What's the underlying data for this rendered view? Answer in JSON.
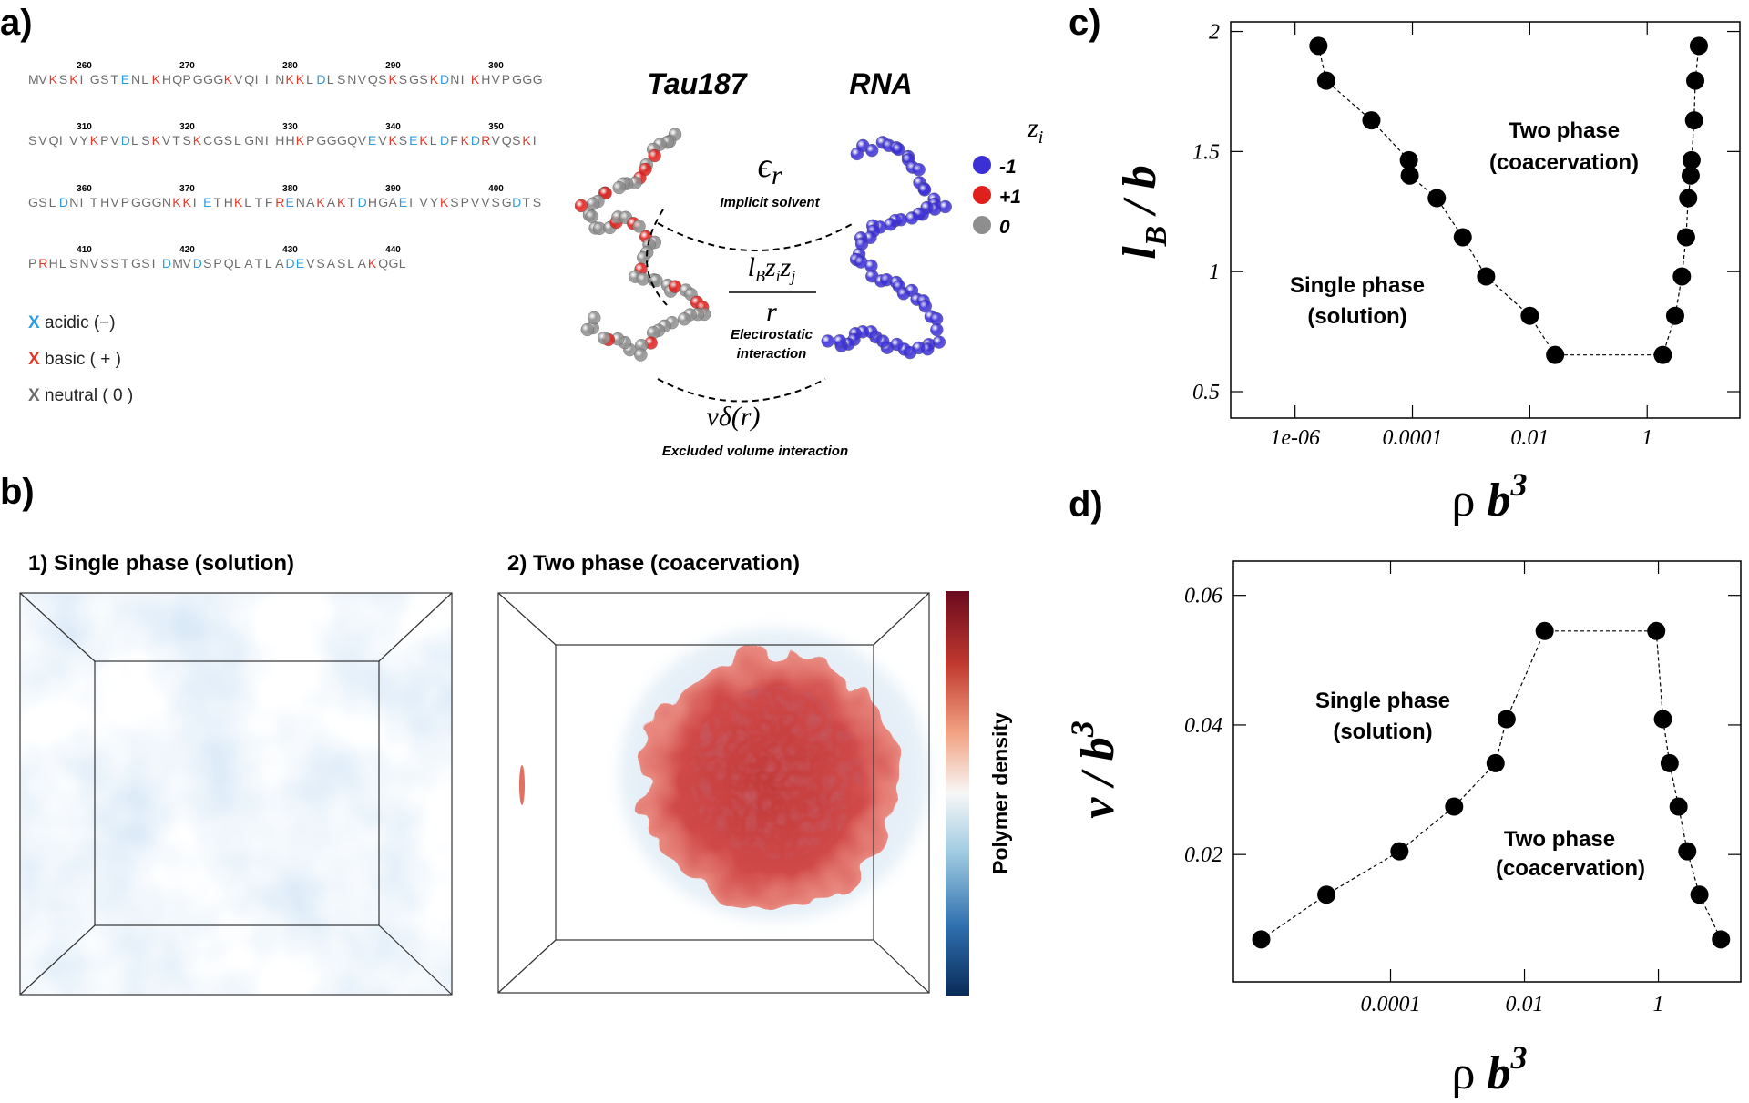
{
  "panel_labels": [
    "a)",
    "b)",
    "c)",
    "d)"
  ],
  "sequence": {
    "lines": [
      "MVKSKIGSTENLKHQPGGGKVQIINKKLDLSNVQSKSGSKDNIKHVPGGG",
      "SVQIVYKPVDLSKVTSKCGSLGNIHHKPGGGQVEVKSEKLDFKDRVQSKI",
      "GSLDNITHVPGGGNKKIETHKLTFRENAKAKTDHGAEIVYKSPVVSGDTS",
      "PRHLSNVSSTGSIDMVDSPQLATLADEVSASLAKQGL"
    ],
    "numbers": [
      [
        260,
        270,
        280,
        290,
        300
      ],
      [
        310,
        320,
        330,
        340,
        350
      ],
      [
        360,
        370,
        380,
        390,
        400
      ],
      [
        410,
        420,
        430,
        440
      ]
    ],
    "legend": [
      {
        "symbol": "X",
        "label": "acidic (−)",
        "color": "#2f9be0"
      },
      {
        "symbol": "X",
        "label": "basic ( + )",
        "color": "#e03a2a"
      },
      {
        "symbol": "X",
        "label": "neutral ( 0 )",
        "color": "#6b6b6b"
      }
    ]
  },
  "schematic": {
    "molecules": [
      "Tau187",
      "RNA"
    ],
    "solvent_symbol": [
      "ϵ",
      "r"
    ],
    "solvent_label": "Implicit solvent",
    "electrostatic_numerator": [
      "l",
      "B",
      "z",
      "i",
      "z",
      "j"
    ],
    "electrostatic_denominator": "r",
    "electrostatic_label": [
      "Electrostatic",
      "interaction"
    ],
    "excluded_symbol": "vδ(r)",
    "excluded_label": "Excluded volume interaction",
    "charge_symbol": [
      "z",
      "i"
    ],
    "charges": [
      {
        "label": "-1",
        "color": "#3b2fd6"
      },
      {
        "label": "+1",
        "color": "#e0201c"
      },
      {
        "label": "0",
        "color": "#8e8e8e"
      }
    ]
  },
  "density": {
    "panels": [
      "1) Single phase (solution)",
      "2) Two phase (coacervation)"
    ],
    "colorbar_label": "Polymer density"
  },
  "chart_data": [
    {
      "type": "line",
      "markers": true,
      "line_style": "dashed",
      "color": "#000000",
      "xscale": "log",
      "ylabel": [
        "l",
        "B",
        " / b"
      ],
      "xlabel": [
        "ρ ",
        "b",
        "3"
      ],
      "x": [
        2.5e-06,
        3.4e-06,
        2e-05,
        8.7e-05,
        9e-05,
        0.00026,
        0.00072,
        0.0018,
        0.01,
        0.027,
        1.85,
        3.0,
        3.9,
        4.6,
        5.0,
        5.5,
        5.7,
        6.3,
        6.6,
        7.6
      ],
      "values": [
        1.94,
        1.795,
        1.63,
        1.464,
        1.4,
        1.306,
        1.143,
        0.98,
        0.816,
        0.653,
        0.653,
        0.816,
        0.98,
        1.143,
        1.306,
        1.4,
        1.464,
        1.63,
        1.795,
        1.94
      ],
      "xlim": [
        8e-08,
        38
      ],
      "ylim": [
        0.39,
        2.04
      ],
      "xticks": [
        {
          "value": 1e-06,
          "label": "1e-06"
        },
        0.0001,
        0.01,
        1
      ],
      "yticks": [
        0.5,
        1,
        1.5,
        2
      ],
      "annotations": [
        "Two phase",
        "(coacervation)",
        "Single phase",
        "(solution)"
      ]
    },
    {
      "type": "line",
      "markers": true,
      "line_style": "dashed",
      "color": "#000000",
      "xscale": "log",
      "ylabel": [
        "v / b",
        "3"
      ],
      "xlabel": [
        "ρ ",
        "b",
        "3"
      ],
      "x": [
        1.17e-06,
        1.1e-05,
        0.000136,
        0.00089,
        0.0037,
        0.0054,
        0.02,
        0.93,
        1.17,
        1.47,
        2.0,
        2.7,
        4.1,
        8.6
      ],
      "values": [
        0.0069,
        0.0138,
        0.0205,
        0.0274,
        0.0341,
        0.0409,
        0.0545,
        0.0545,
        0.0409,
        0.0341,
        0.0274,
        0.0205,
        0.0138,
        0.0069
      ],
      "xlim": [
        4.5e-07,
        17
      ],
      "ylim": [
        0.00034,
        0.0653
      ],
      "xticks": [
        0.0001,
        0.01,
        1
      ],
      "yticks": [
        0.02,
        0.04,
        0.06
      ],
      "annotations": [
        "Single phase",
        "(solution)",
        "Two phase",
        "(coacervation)"
      ]
    }
  ]
}
